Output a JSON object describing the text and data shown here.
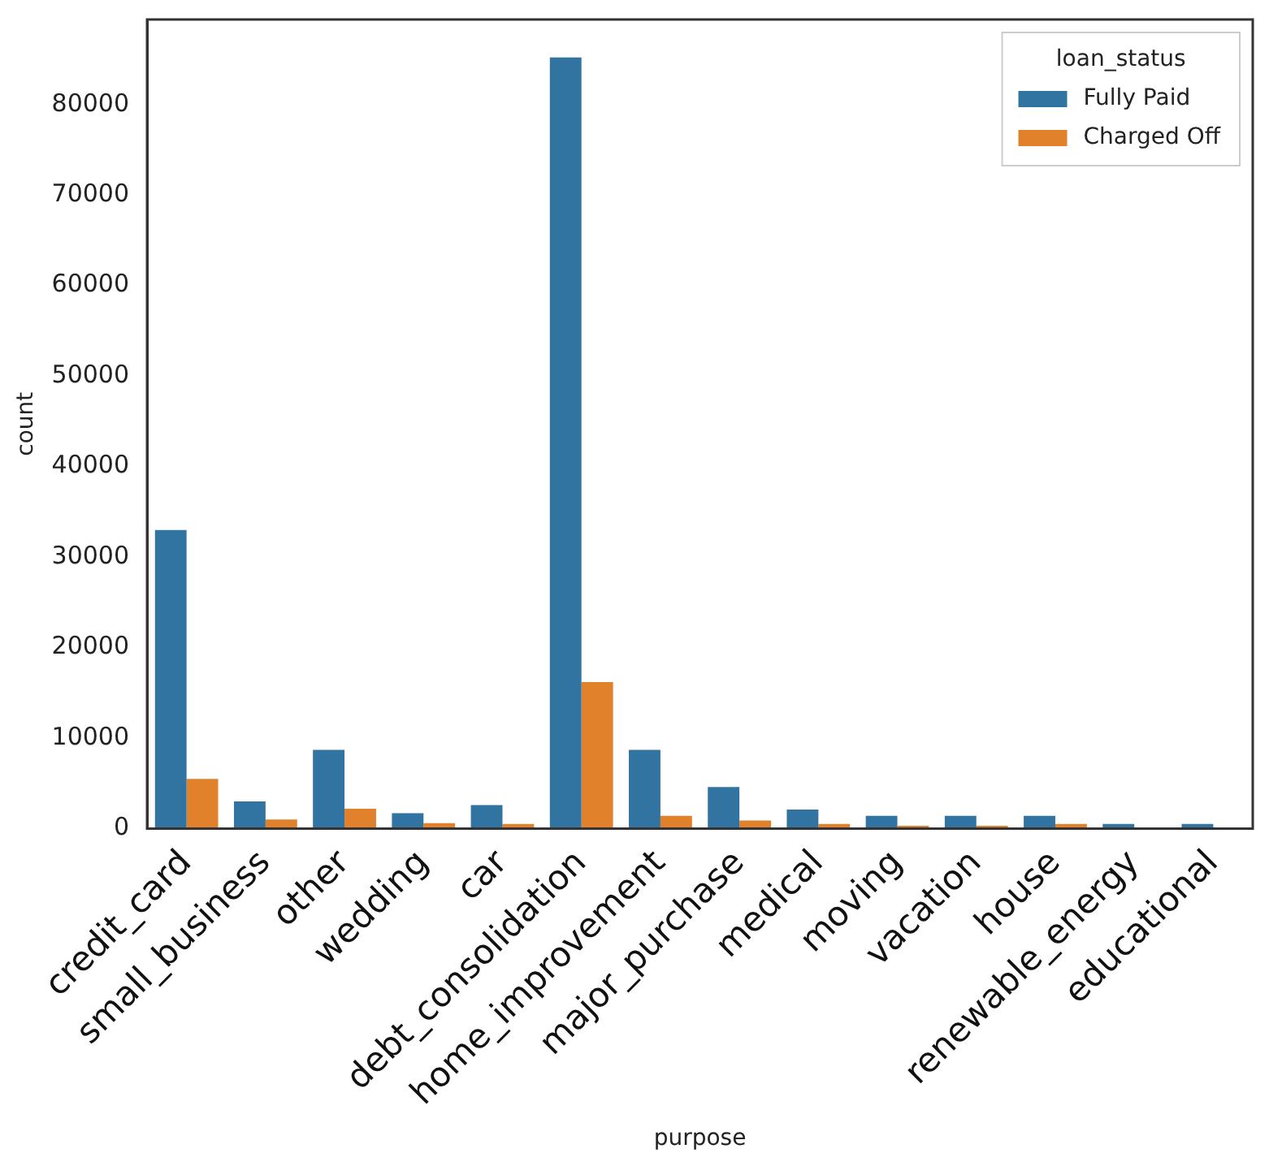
{
  "chart_data": {
    "type": "bar",
    "xlabel": "purpose",
    "ylabel": "count",
    "legend_title": "loan_status",
    "legend": "top right",
    "grid": false,
    "categories": [
      "credit_card",
      "small_business",
      "other",
      "wedding",
      "car",
      "debt_consolidation",
      "home_improvement",
      "major_purchase",
      "medical",
      "moving",
      "vacation",
      "house",
      "renewable_energy",
      "educational"
    ],
    "ylim": [
      0,
      89400
    ],
    "yticks": [
      0,
      10000,
      20000,
      30000,
      40000,
      50000,
      60000,
      70000,
      80000
    ],
    "series": [
      {
        "name": "Fully Paid",
        "color": "#3274a1",
        "values": [
          33000,
          3000,
          8700,
          1700,
          2600,
          85200,
          8700,
          4600,
          2100,
          1400,
          1400,
          1400,
          500,
          500
        ]
      },
      {
        "name": "Charged Off",
        "color": "#e1812c",
        "values": [
          5500,
          1000,
          2200,
          600,
          500,
          16200,
          1400,
          900,
          500,
          300,
          300,
          500,
          null,
          null
        ]
      }
    ]
  }
}
